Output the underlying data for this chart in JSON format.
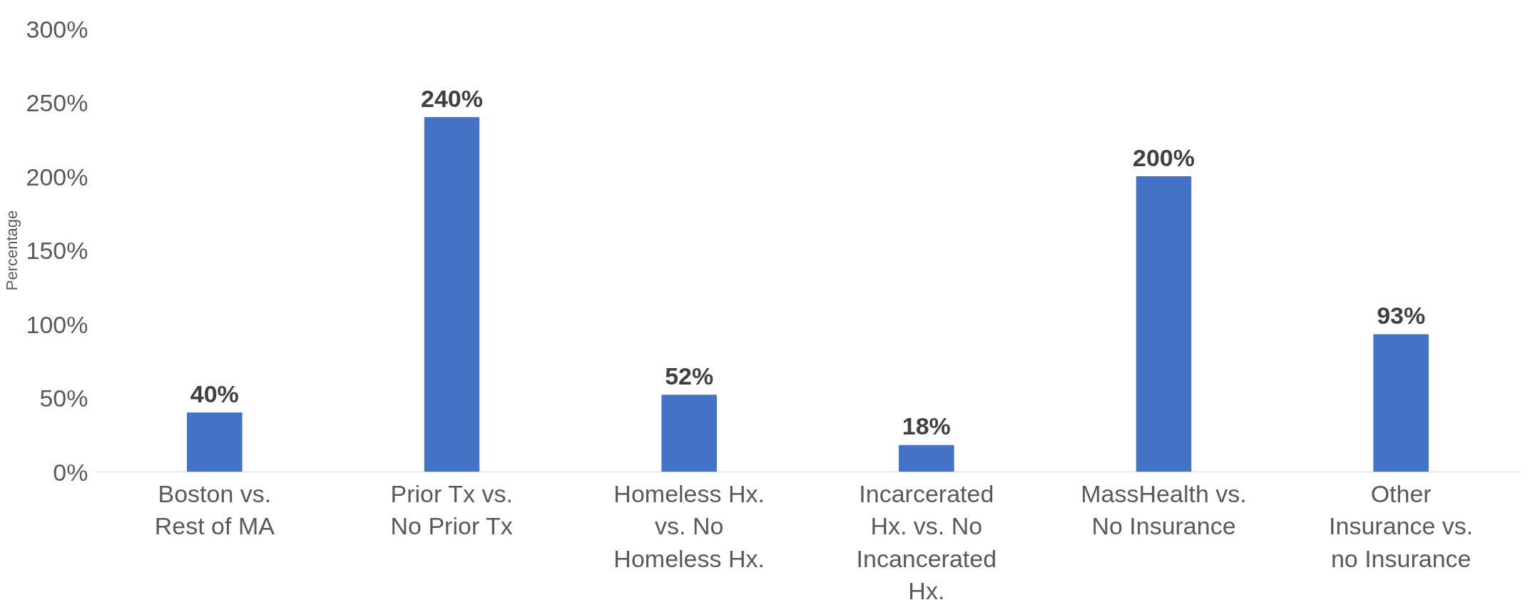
{
  "chart_data": {
    "type": "bar",
    "ylabel": "Percentage",
    "categories": [
      "Boston vs. Rest of MA",
      "Prior Tx vs. No Prior Tx",
      "Homeless Hx. vs. No Homeless Hx.",
      "Incarcerated Hx. vs. No Incancerated Hx.",
      "MassHealth vs. No Insurance",
      "Other Insurance vs. no Insurance"
    ],
    "values": [
      40,
      240,
      52,
      18,
      200,
      93
    ],
    "color": "#4472c4",
    "value_labels": [
      "40%",
      "240%",
      "52%",
      "18%",
      "200%",
      "93%"
    ],
    "ylim": [
      0,
      300
    ],
    "yticks": [
      {
        "value": 0,
        "label": "0%"
      },
      {
        "value": 50,
        "label": "50%"
      },
      {
        "value": 100,
        "label": "100%"
      },
      {
        "value": 150,
        "label": "150%"
      },
      {
        "value": 200,
        "label": "200%"
      },
      {
        "value": 250,
        "label": "250%"
      },
      {
        "value": 300,
        "label": "300%"
      }
    ],
    "grid": false
  }
}
